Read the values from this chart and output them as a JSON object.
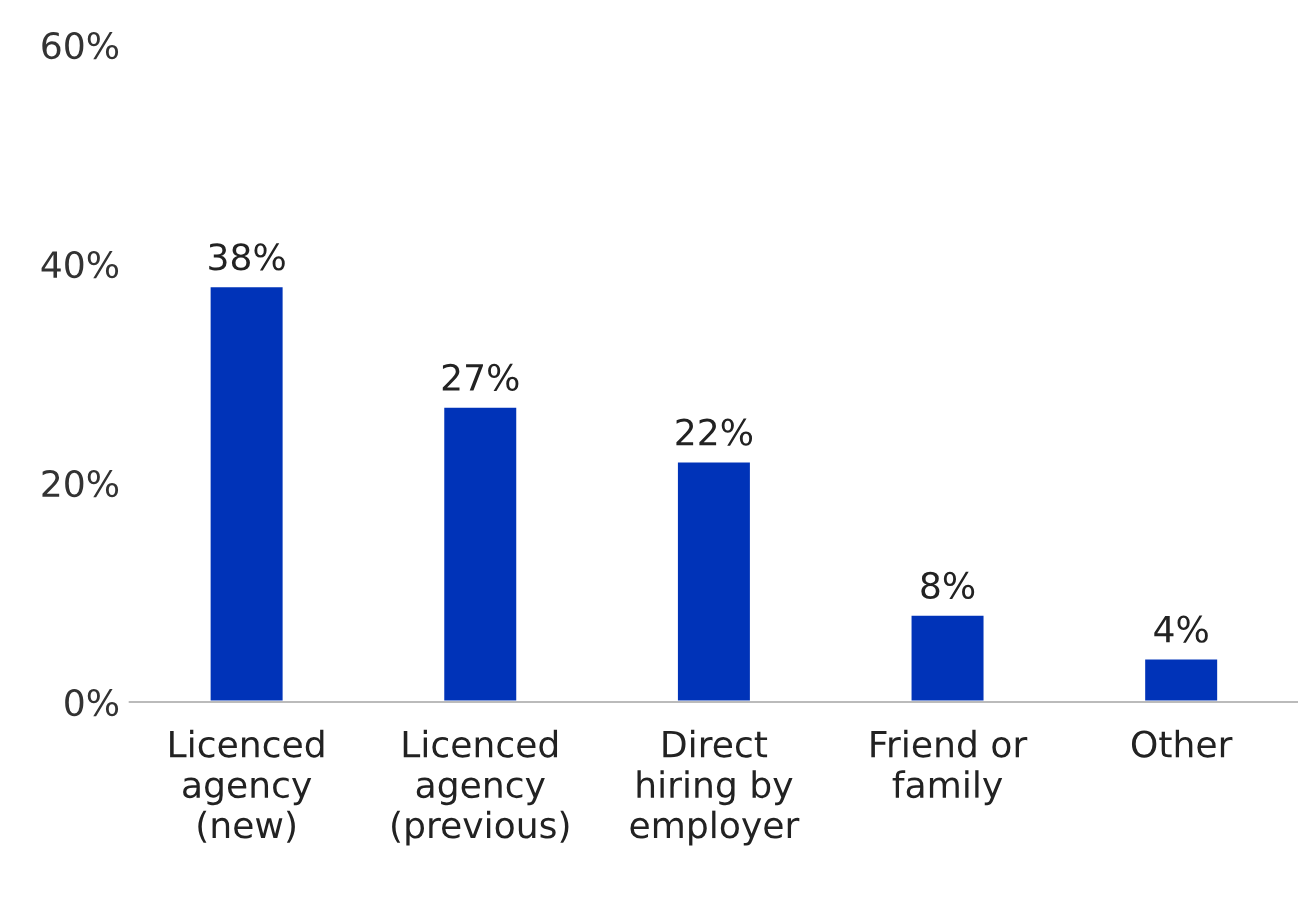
{
  "chart_data": {
    "type": "bar",
    "categories": [
      "Licenced\nagency\n(new)",
      "Licenced\nagency\n(previous)",
      "Direct\nhiring by\nemployer",
      "Friend or\nfamily",
      "Other"
    ],
    "values": [
      38,
      27,
      22,
      8,
      4
    ],
    "value_labels": [
      "38%",
      "27%",
      "22%",
      "8%",
      "4%"
    ],
    "color": "#0033b8",
    "ylim": [
      0,
      60
    ],
    "yticks": [
      {
        "value": 0,
        "label": "0%"
      },
      {
        "value": 20,
        "label": "20%"
      },
      {
        "value": 40,
        "label": "40%"
      },
      {
        "value": 60,
        "label": "60%"
      }
    ],
    "grid": false
  }
}
